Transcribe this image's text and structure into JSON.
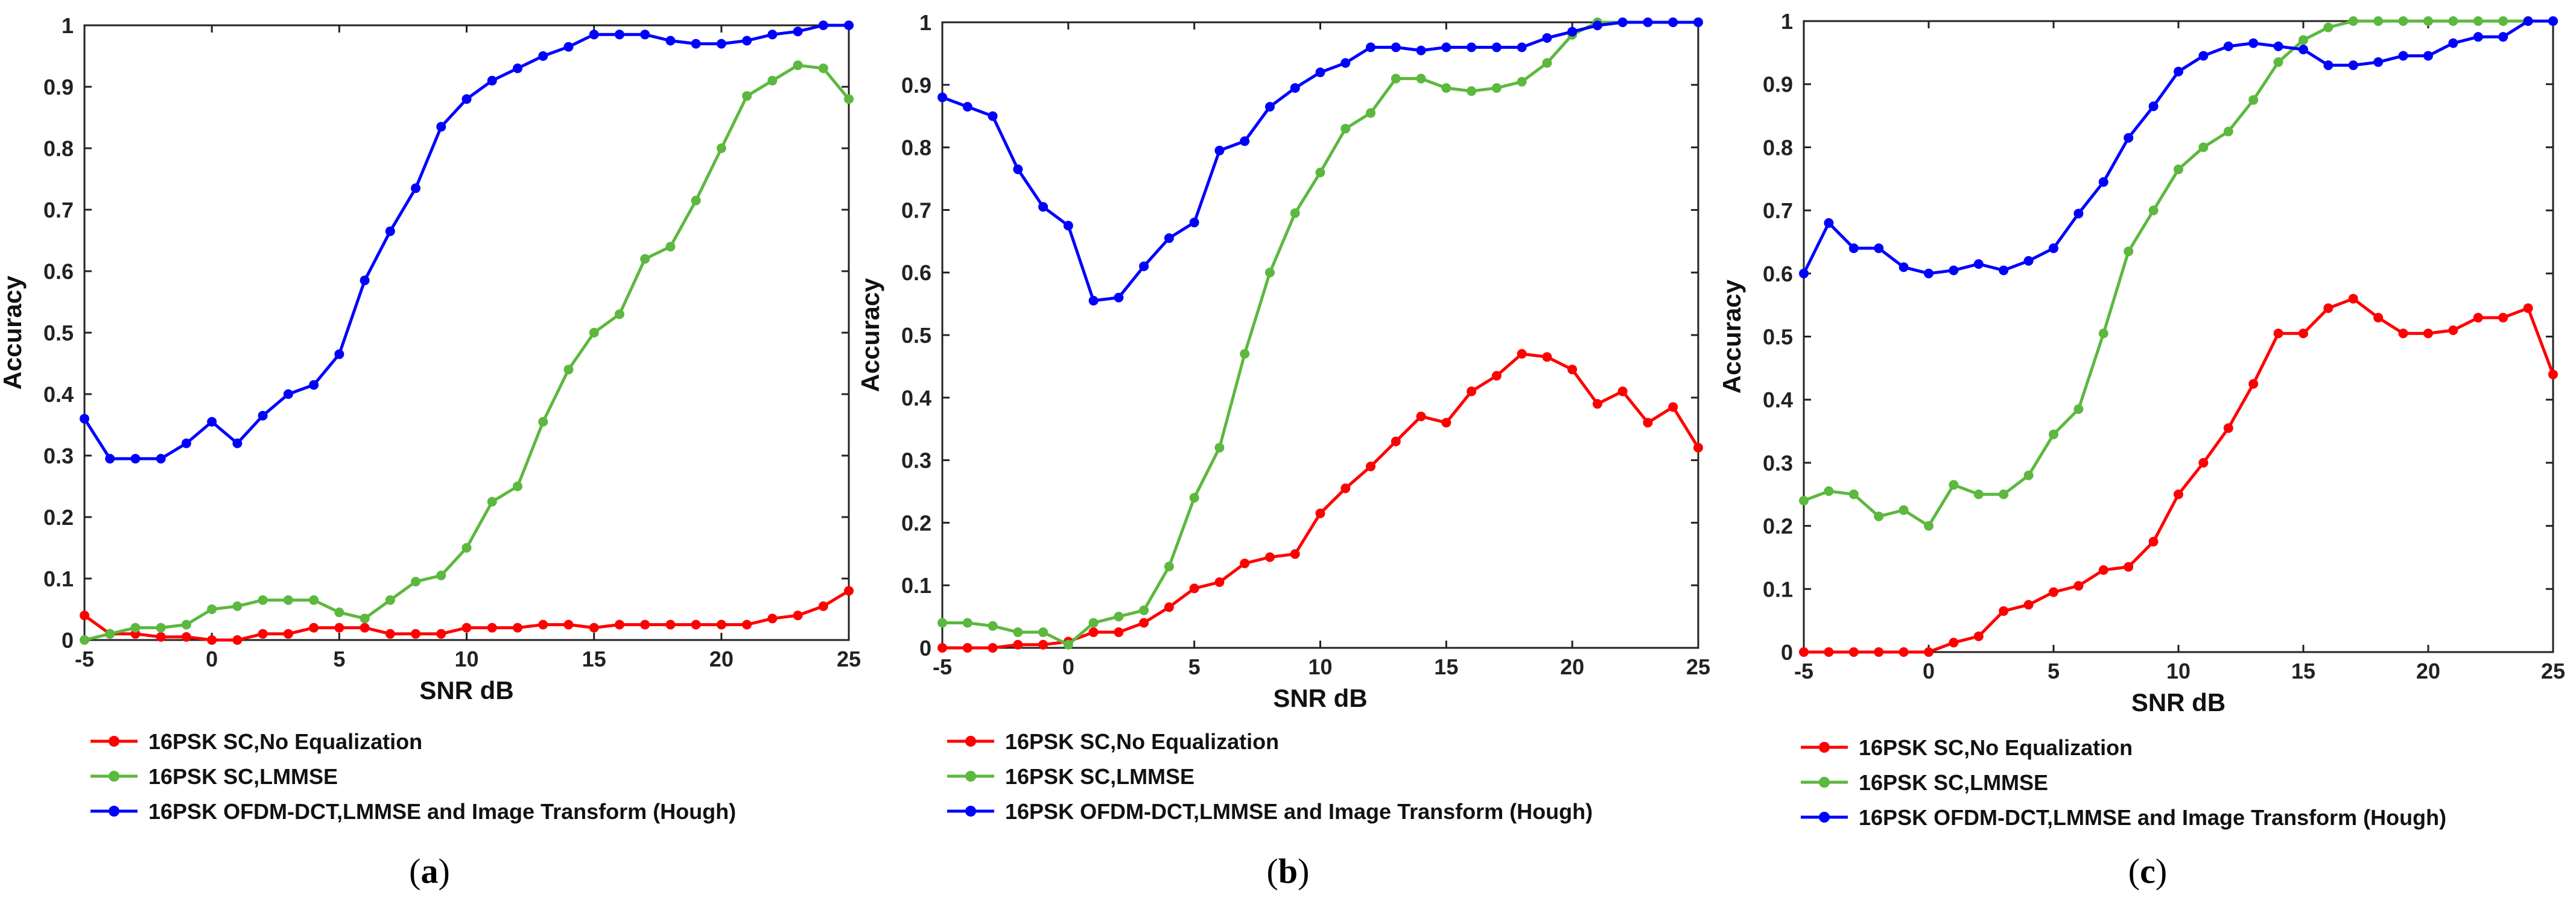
{
  "chart_data": [
    {
      "type": "line",
      "caption": "a",
      "xlabel": "SNR dB",
      "ylabel": "Accuracy",
      "xlim": [
        -5,
        25
      ],
      "ylim": [
        0,
        1
      ],
      "xticks": [
        -5,
        0,
        5,
        10,
        15,
        20,
        25
      ],
      "yticks": [
        0,
        0.1,
        0.2,
        0.3,
        0.4,
        0.5,
        0.6,
        0.7,
        0.8,
        0.9,
        1
      ],
      "grid": false,
      "legend_position": "below",
      "x": [
        -5,
        -4,
        -3,
        -2,
        -1,
        0,
        1,
        2,
        3,
        4,
        5,
        6,
        7,
        8,
        9,
        10,
        11,
        12,
        13,
        14,
        15,
        16,
        17,
        18,
        19,
        20,
        21,
        22,
        23,
        24,
        25
      ],
      "series": [
        {
          "name": "16PSK SC,No Equalization",
          "color": "#ff0000",
          "values": [
            0.04,
            0.01,
            0.01,
            0.005,
            0.005,
            0.0,
            0.0,
            0.01,
            0.01,
            0.02,
            0.02,
            0.02,
            0.01,
            0.01,
            0.01,
            0.02,
            0.02,
            0.02,
            0.025,
            0.025,
            0.02,
            0.025,
            0.025,
            0.025,
            0.025,
            0.025,
            0.025,
            0.035,
            0.04,
            0.055,
            0.08
          ]
        },
        {
          "name": "16PSK SC,LMMSE",
          "color": "#5cb83e",
          "values": [
            0.0,
            0.01,
            0.02,
            0.02,
            0.025,
            0.05,
            0.055,
            0.065,
            0.065,
            0.065,
            0.045,
            0.035,
            0.065,
            0.095,
            0.105,
            0.15,
            0.225,
            0.25,
            0.355,
            0.44,
            0.5,
            0.53,
            0.62,
            0.64,
            0.715,
            0.8,
            0.885,
            0.91,
            0.935,
            0.93,
            0.88
          ]
        },
        {
          "name": "16PSK OFDM-DCT,LMMSE and Image Transform (Hough)",
          "color": "#0000ff",
          "values": [
            0.36,
            0.295,
            0.295,
            0.295,
            0.32,
            0.355,
            0.32,
            0.365,
            0.4,
            0.415,
            0.465,
            0.585,
            0.665,
            0.735,
            0.835,
            0.88,
            0.91,
            0.93,
            0.95,
            0.965,
            0.985,
            0.985,
            0.985,
            0.975,
            0.97,
            0.97,
            0.975,
            0.985,
            0.99,
            1.0,
            1.0
          ]
        }
      ]
    },
    {
      "type": "line",
      "caption": "b",
      "xlabel": "SNR dB",
      "ylabel": "Accuracy",
      "xlim": [
        -5,
        25
      ],
      "ylim": [
        0,
        1
      ],
      "xticks": [
        -5,
        0,
        5,
        10,
        15,
        20,
        25
      ],
      "yticks": [
        0,
        0.1,
        0.2,
        0.3,
        0.4,
        0.5,
        0.6,
        0.7,
        0.8,
        0.9,
        1
      ],
      "grid": false,
      "legend_position": "below",
      "x": [
        -5,
        -4,
        -3,
        -2,
        -1,
        0,
        1,
        2,
        3,
        4,
        5,
        6,
        7,
        8,
        9,
        10,
        11,
        12,
        13,
        14,
        15,
        16,
        17,
        18,
        19,
        20,
        21,
        22,
        23,
        24,
        25
      ],
      "series": [
        {
          "name": "16PSK SC,No Equalization",
          "color": "#ff0000",
          "values": [
            0.0,
            0.0,
            0.0,
            0.005,
            0.005,
            0.01,
            0.025,
            0.025,
            0.04,
            0.065,
            0.095,
            0.105,
            0.135,
            0.145,
            0.15,
            0.215,
            0.255,
            0.29,
            0.33,
            0.37,
            0.36,
            0.41,
            0.435,
            0.47,
            0.465,
            0.445,
            0.39,
            0.41,
            0.36,
            0.385,
            0.32
          ]
        },
        {
          "name": "16PSK SC,LMMSE",
          "color": "#5cb83e",
          "values": [
            0.04,
            0.04,
            0.035,
            0.025,
            0.025,
            0.005,
            0.04,
            0.05,
            0.06,
            0.13,
            0.24,
            0.32,
            0.47,
            0.6,
            0.695,
            0.76,
            0.83,
            0.855,
            0.91,
            0.91,
            0.895,
            0.89,
            0.895,
            0.905,
            0.935,
            0.98,
            1.0,
            1.0,
            1.0,
            1.0,
            1.0
          ]
        },
        {
          "name": "16PSK OFDM-DCT,LMMSE and Image Transform (Hough)",
          "color": "#0000ff",
          "values": [
            0.88,
            0.865,
            0.85,
            0.765,
            0.705,
            0.675,
            0.555,
            0.56,
            0.61,
            0.655,
            0.68,
            0.795,
            0.81,
            0.865,
            0.895,
            0.92,
            0.935,
            0.96,
            0.96,
            0.955,
            0.96,
            0.96,
            0.96,
            0.96,
            0.975,
            0.985,
            0.995,
            1.0,
            1.0,
            1.0,
            1.0
          ]
        }
      ]
    },
    {
      "type": "line",
      "caption": "c",
      "xlabel": "SNR dB",
      "ylabel": "Accuracy",
      "xlim": [
        -5,
        25
      ],
      "ylim": [
        0,
        1
      ],
      "xticks": [
        -5,
        0,
        5,
        10,
        15,
        20,
        25
      ],
      "yticks": [
        0,
        0.1,
        0.2,
        0.3,
        0.4,
        0.5,
        0.6,
        0.7,
        0.8,
        0.9,
        1
      ],
      "grid": false,
      "legend_position": "below",
      "x": [
        -5,
        -4,
        -3,
        -2,
        -1,
        0,
        1,
        2,
        3,
        4,
        5,
        6,
        7,
        8,
        9,
        10,
        11,
        12,
        13,
        14,
        15,
        16,
        17,
        18,
        19,
        20,
        21,
        22,
        23,
        24,
        25
      ],
      "series": [
        {
          "name": "16PSK SC,No Equalization",
          "color": "#ff0000",
          "values": [
            0.0,
            0.0,
            0.0,
            0.0,
            0.0,
            0.0,
            0.015,
            0.025,
            0.065,
            0.075,
            0.095,
            0.105,
            0.13,
            0.135,
            0.175,
            0.25,
            0.3,
            0.355,
            0.425,
            0.505,
            0.505,
            0.545,
            0.56,
            0.53,
            0.505,
            0.505,
            0.51,
            0.53,
            0.53,
            0.545,
            0.44
          ]
        },
        {
          "name": "16PSK SC,LMMSE",
          "color": "#5cb83e",
          "values": [
            0.24,
            0.255,
            0.25,
            0.215,
            0.225,
            0.2,
            0.265,
            0.25,
            0.25,
            0.28,
            0.345,
            0.385,
            0.505,
            0.635,
            0.7,
            0.765,
            0.8,
            0.825,
            0.875,
            0.935,
            0.97,
            0.99,
            1.0,
            1.0,
            1.0,
            1.0,
            1.0,
            1.0,
            1.0,
            1.0,
            1.0
          ]
        },
        {
          "name": "16PSK OFDM-DCT,LMMSE and Image Transform (Hough)",
          "color": "#0000ff",
          "values": [
            0.6,
            0.68,
            0.64,
            0.64,
            0.61,
            0.6,
            0.605,
            0.615,
            0.605,
            0.62,
            0.64,
            0.695,
            0.745,
            0.815,
            0.865,
            0.92,
            0.945,
            0.96,
            0.965,
            0.96,
            0.955,
            0.93,
            0.93,
            0.935,
            0.945,
            0.945,
            0.965,
            0.975,
            0.975,
            1.0,
            1.0
          ]
        }
      ]
    }
  ]
}
